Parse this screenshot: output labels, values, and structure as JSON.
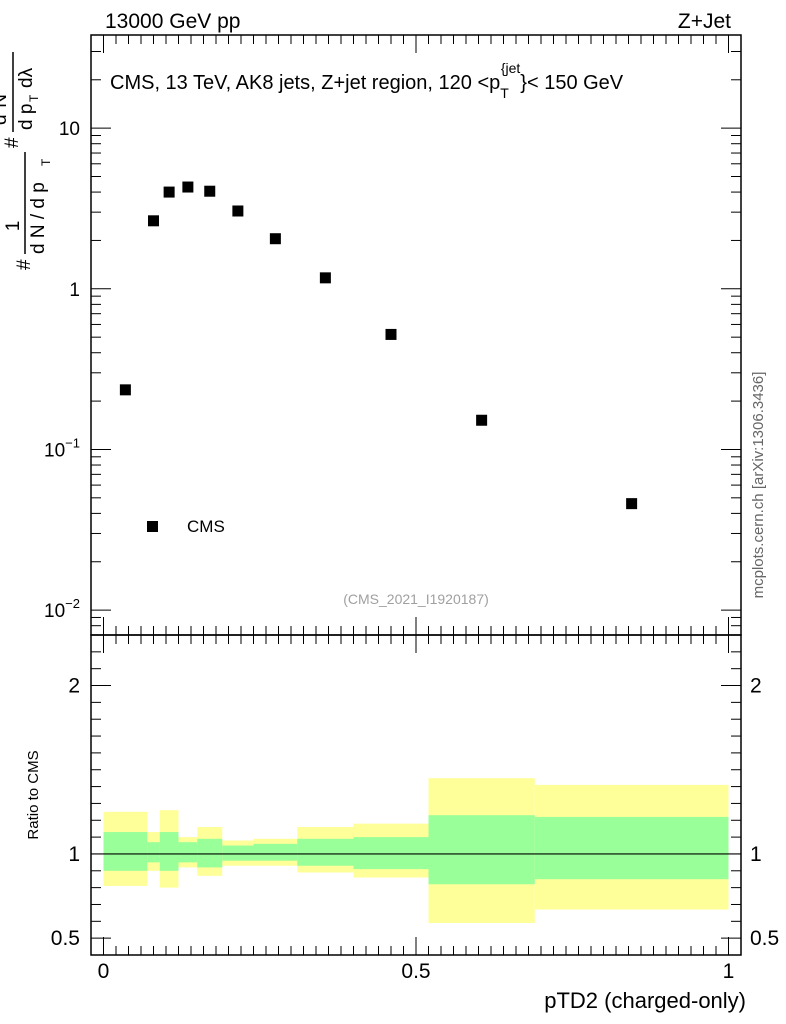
{
  "header": {
    "left": "13000 GeV pp",
    "right": "Z+Jet"
  },
  "chart_data": [
    {
      "type": "scatter",
      "panel": "main",
      "title": "CMS, 13 TeV, AK8 jets, Z+jet region, 120 <p_T^{jet}< 150 GeV",
      "title_main": "CMS, 13 TeV, AK8 jets, Z+jet region, 120 <p",
      "title_sub": "T",
      "title_sup": "{jet",
      "title_end": "}< 150 GeV",
      "ylabel": "1/dN/dp_T d^2N/dp_T dλ",
      "ylabel_parts": {
        "hash": "#",
        "frac1_num": "1",
        "frac1_den": "d N / d p",
        "frac2_num": "d",
        "frac2_num_sup": "2",
        "frac2_num_end": "N",
        "frac2_den": "d p",
        "frac2_den_end": "dλ",
        "sub_t": "T"
      },
      "yscale": "log",
      "ylim": [
        0.007,
        38
      ],
      "xlim": [
        -0.02,
        1.02
      ],
      "series": [
        {
          "name": "CMS",
          "x": [
            0.035,
            0.08,
            0.105,
            0.135,
            0.17,
            0.215,
            0.275,
            0.355,
            0.46,
            0.605,
            0.845
          ],
          "y": [
            0.235,
            2.65,
            4.0,
            4.3,
            4.05,
            3.05,
            2.05,
            1.17,
            0.52,
            0.152,
            0.046
          ]
        }
      ],
      "yticks": [
        {
          "value": 0.01,
          "base": "10",
          "exp": "−2"
        },
        {
          "value": 0.1,
          "base": "10",
          "exp": "−1"
        },
        {
          "value": 1,
          "label": "1"
        },
        {
          "value": 10,
          "label": "10"
        }
      ],
      "legend": {
        "label": "CMS",
        "position": "bottom-left"
      },
      "watermark": "(CMS_2021_I1920187)"
    },
    {
      "type": "area",
      "panel": "ratio",
      "ylabel": "Ratio to CMS",
      "xlabel": "pTD2 (charged-only)",
      "ylim": [
        0.4,
        2.3
      ],
      "xlim": [
        -0.02,
        1.02
      ],
      "xticks": [
        {
          "value": 0,
          "label": "0"
        },
        {
          "value": 0.5,
          "label": "0.5"
        },
        {
          "value": 1,
          "label": "1"
        }
      ],
      "yticks": [
        {
          "value": 0.5,
          "label": "0.5"
        },
        {
          "value": 1,
          "label": "1"
        },
        {
          "value": 2,
          "label": "2"
        }
      ],
      "bin_edges": [
        0,
        0.07,
        0.09,
        0.12,
        0.15,
        0.19,
        0.24,
        0.31,
        0.4,
        0.52,
        0.69,
        1.0
      ],
      "band_inner": {
        "color": "#99ff99",
        "low": [
          0.9,
          0.95,
          0.9,
          0.95,
          0.92,
          0.96,
          0.96,
          0.93,
          0.91,
          0.82,
          0.85
        ],
        "high": [
          1.13,
          1.07,
          1.13,
          1.07,
          1.09,
          1.05,
          1.06,
          1.09,
          1.1,
          1.23,
          1.22
        ]
      },
      "band_outer": {
        "color": "#ffff99",
        "low": [
          0.81,
          0.9,
          0.8,
          0.92,
          0.87,
          0.93,
          0.93,
          0.89,
          0.86,
          0.59,
          0.67
        ],
        "high": [
          1.25,
          1.13,
          1.26,
          1.1,
          1.16,
          1.08,
          1.09,
          1.16,
          1.18,
          1.45,
          1.41
        ]
      },
      "reference_line": 1.0
    }
  ],
  "side_label": "mcplots.cern.ch [arXiv:1306.3436]"
}
